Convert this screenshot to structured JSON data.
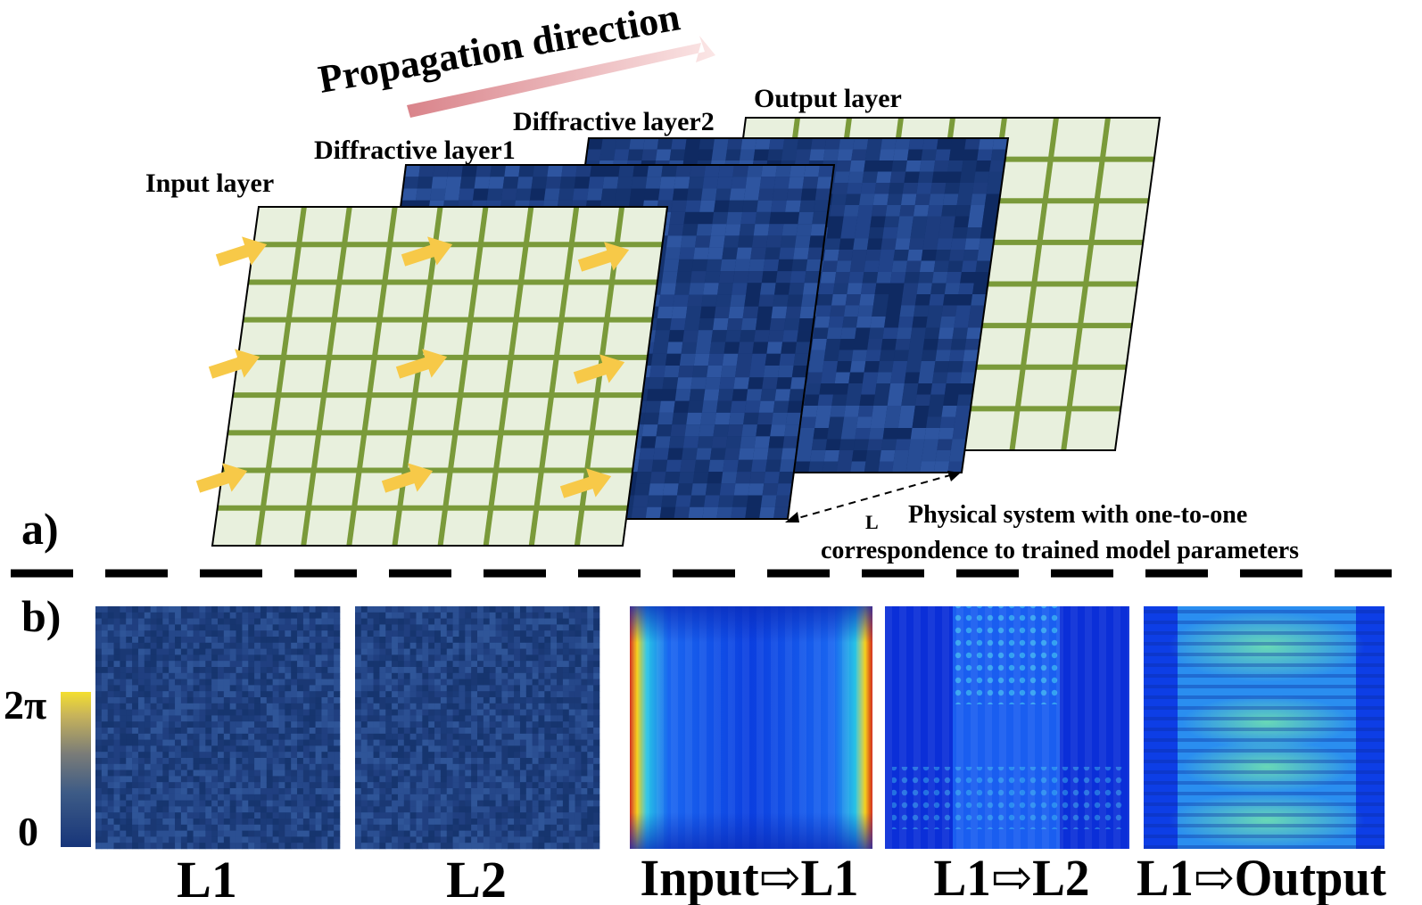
{
  "panel_a": {
    "tag": "a)",
    "direction_label": "Propagation direction",
    "layers": {
      "input": "Input layer",
      "diffractive1": "Diffractive layer1",
      "diffractive2": "Diffractive layer2",
      "output": "Output layer"
    },
    "distance_label": "L",
    "note_line1": "Physical system with one-to-one",
    "note_line2": "correspondence to trained model parameters"
  },
  "panel_b": {
    "tag": "b)",
    "colorbar": {
      "max_label": "2π",
      "min_label": "0"
    },
    "images": [
      {
        "caption": "L1",
        "kind": "phase-mask"
      },
      {
        "caption": "L2",
        "kind": "phase-mask"
      },
      {
        "caption": "Input⇨L1",
        "kind": "intensity-field"
      },
      {
        "caption": "L1⇨L2",
        "kind": "intensity-field"
      },
      {
        "caption": "L1⇨Output",
        "kind": "intensity-field"
      }
    ]
  },
  "colors": {
    "grid_line": "#7a9a3a",
    "grid_fill": "#e8f0dd",
    "mask_dark": "#12306a",
    "mask_light": "#2f5aa0",
    "arrow": "#f7c948"
  }
}
